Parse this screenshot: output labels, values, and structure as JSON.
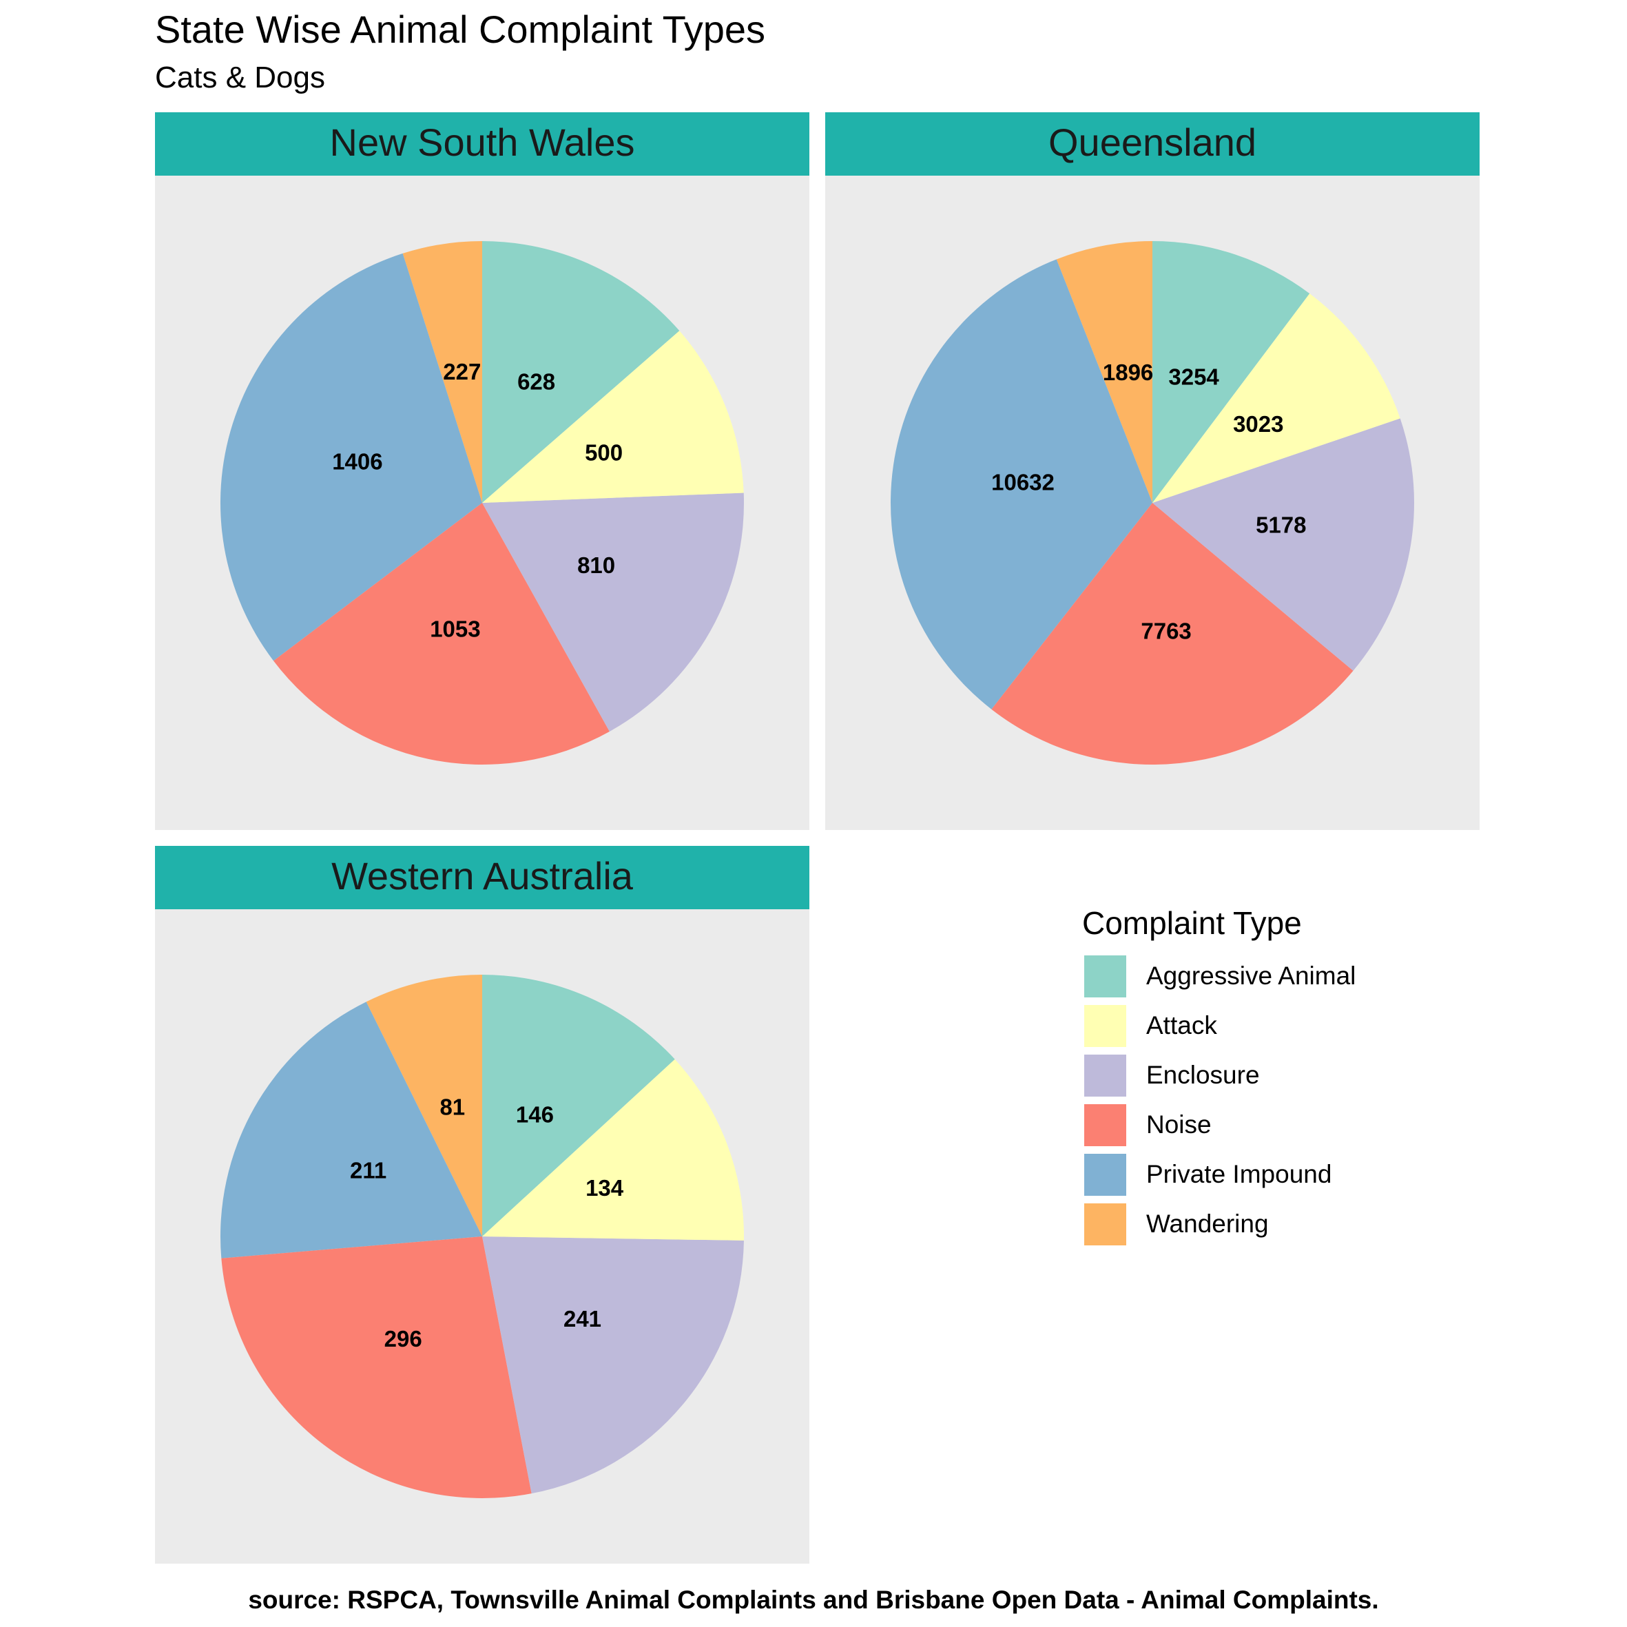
{
  "title": "State Wise Animal Complaint Types",
  "subtitle": "Cats & Dogs",
  "caption": "source: RSPCA, Townsville Animal Complaints and Brisbane Open Data - Animal Complaints.",
  "legend": {
    "title": "Complaint Type",
    "items": [
      {
        "label": "Aggressive Animal",
        "color": "#8DD3C7"
      },
      {
        "label": "Attack",
        "color": "#FFFFB3"
      },
      {
        "label": "Enclosure",
        "color": "#BEBADA"
      },
      {
        "label": "Noise",
        "color": "#FB8072"
      },
      {
        "label": "Private Impound",
        "color": "#80B1D3"
      },
      {
        "label": "Wandering",
        "color": "#FDB462"
      }
    ]
  },
  "colors": {
    "strip": "#20B2AA",
    "panel_background": "#EBEBEB"
  },
  "chart_data": [
    {
      "type": "pie",
      "facet": "New South Wales",
      "categories": [
        "Aggressive Animal",
        "Attack",
        "Enclosure",
        "Noise",
        "Private Impound",
        "Wandering"
      ],
      "values": [
        628,
        500,
        810,
        1053,
        1406,
        227
      ]
    },
    {
      "type": "pie",
      "facet": "Queensland",
      "categories": [
        "Aggressive Animal",
        "Attack",
        "Enclosure",
        "Noise",
        "Private Impound",
        "Wandering"
      ],
      "values": [
        3254,
        3023,
        5178,
        7763,
        10632,
        1896
      ]
    },
    {
      "type": "pie",
      "facet": "Western Australia",
      "categories": [
        "Aggressive Animal",
        "Attack",
        "Enclosure",
        "Noise",
        "Private Impound",
        "Wandering"
      ],
      "values": [
        146,
        134,
        241,
        296,
        211,
        81
      ]
    }
  ]
}
